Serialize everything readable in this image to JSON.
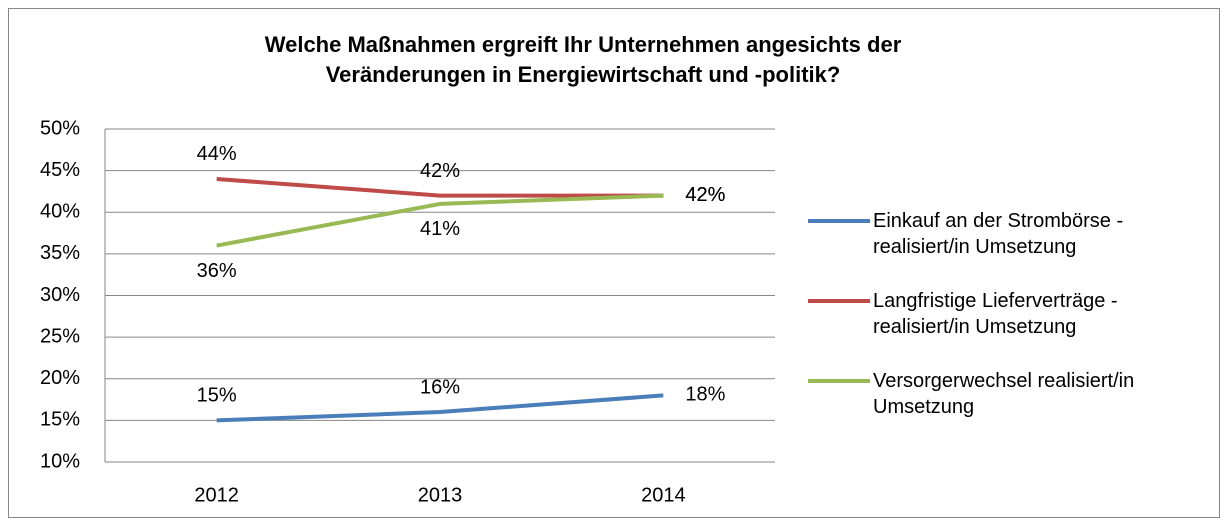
{
  "chart_data": {
    "type": "line",
    "title": "Welche Maßnahmen ergreift Ihr Unternehmen angesichts der Veränderungen in Energiewirtschaft und -politik?",
    "categories": [
      "2012",
      "2013",
      "2014"
    ],
    "series": [
      {
        "name": "Einkauf an der Strombörse - realisiert/in Umsetzung",
        "color": "#4a7ebb",
        "values": [
          15,
          16,
          18
        ],
        "value_labels": [
          "15%",
          "16%",
          "18%"
        ]
      },
      {
        "name": "Langfristige Lieferverträge - realisiert/in Umsetzung",
        "color": "#be4b48",
        "values": [
          44,
          42,
          42
        ],
        "value_labels": [
          "44%",
          "42%",
          "42%"
        ]
      },
      {
        "name": "Versorgerwechsel realisiert/in Umsetzung",
        "color": "#98b954",
        "values": [
          36,
          41,
          42
        ],
        "value_labels": [
          "36%",
          "41%",
          "42%"
        ]
      }
    ],
    "ylim": [
      10,
      50
    ],
    "yticks": [
      {
        "value": 10,
        "label": "10%"
      },
      {
        "value": 15,
        "label": "15%"
      },
      {
        "value": 20,
        "label": "20%"
      },
      {
        "value": 25,
        "label": "25%"
      },
      {
        "value": 30,
        "label": "30%"
      },
      {
        "value": 35,
        "label": "35%"
      },
      {
        "value": 40,
        "label": "40%"
      },
      {
        "value": 45,
        "label": "45%"
      },
      {
        "value": 50,
        "label": "50%"
      }
    ],
    "grid": true,
    "legend": "right"
  }
}
